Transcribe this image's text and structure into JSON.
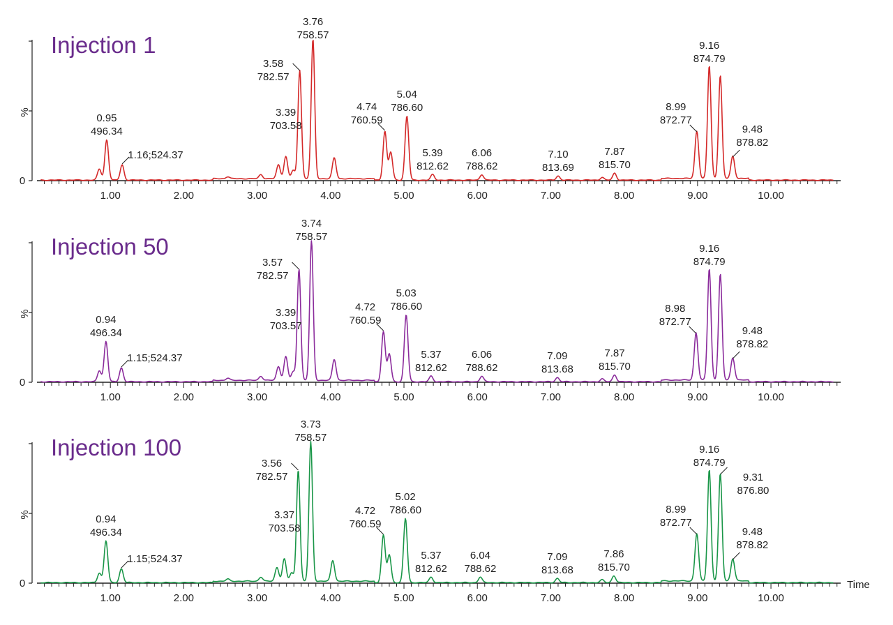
{
  "chart_data": [
    {
      "type": "line",
      "title": "Injection 1",
      "title_color": "#6a2c8c",
      "line_color": "#d42a2a",
      "xlabel": "",
      "ylabel": "%",
      "y_ticks": [
        "0",
        "%"
      ],
      "xlim": [
        0.0,
        10.95
      ],
      "x_ticks": [
        "1.00",
        "2.00",
        "3.00",
        "4.00",
        "5.00",
        "6.00",
        "7.00",
        "8.00",
        "9.00",
        "10.00"
      ],
      "peaks": [
        {
          "rt": 0.85,
          "h": 0.08
        },
        {
          "rt": 0.95,
          "h": 0.29,
          "label": [
            "0.95",
            "496.34"
          ]
        },
        {
          "rt": 1.16,
          "h": 0.11,
          "label": [
            "1.16;524.37"
          ]
        },
        {
          "rt": 2.6,
          "h": 0.015
        },
        {
          "rt": 3.05,
          "h": 0.03
        },
        {
          "rt": 3.29,
          "h": 0.1
        },
        {
          "rt": 3.39,
          "h": 0.16,
          "label": [
            "3.39",
            "703.58"
          ]
        },
        {
          "rt": 3.49,
          "h": 0.06
        },
        {
          "rt": 3.58,
          "h": 0.78,
          "label": [
            "3.58",
            "782.57"
          ]
        },
        {
          "rt": 3.76,
          "h": 1.0,
          "label": [
            "3.76",
            "758.57"
          ]
        },
        {
          "rt": 4.05,
          "h": 0.15
        },
        {
          "rt": 4.74,
          "h": 0.35,
          "label": [
            "4.74",
            "760.59"
          ]
        },
        {
          "rt": 4.82,
          "h": 0.2
        },
        {
          "rt": 5.04,
          "h": 0.46,
          "label": [
            "5.04",
            "786.60"
          ]
        },
        {
          "rt": 5.39,
          "h": 0.04,
          "label": [
            "5.39",
            "812.62"
          ]
        },
        {
          "rt": 6.06,
          "h": 0.04,
          "label": [
            "6.06",
            "788.62"
          ]
        },
        {
          "rt": 7.1,
          "h": 0.03,
          "label": [
            "7.10",
            "813.69"
          ]
        },
        {
          "rt": 7.7,
          "h": 0.02
        },
        {
          "rt": 7.87,
          "h": 0.05,
          "label": [
            "7.87",
            "815.70"
          ]
        },
        {
          "rt": 8.99,
          "h": 0.34,
          "label": [
            "8.99",
            "872.77"
          ]
        },
        {
          "rt": 9.16,
          "h": 0.81,
          "label": [
            "9.16",
            "874.79"
          ]
        },
        {
          "rt": 9.31,
          "h": 0.74
        },
        {
          "rt": 9.48,
          "h": 0.16,
          "label": [
            "9.48",
            "878.82"
          ]
        }
      ]
    },
    {
      "type": "line",
      "title": "Injection 50",
      "title_color": "#6a2c8c",
      "line_color": "#8b2c9c",
      "xlabel": "",
      "ylabel": "%",
      "y_ticks": [
        "0",
        "%"
      ],
      "xlim": [
        0.0,
        10.95
      ],
      "x_ticks": [
        "1.00",
        "2.00",
        "3.00",
        "4.00",
        "5.00",
        "6.00",
        "7.00",
        "8.00",
        "9.00",
        "10.00"
      ],
      "peaks": [
        {
          "rt": 0.85,
          "h": 0.08
        },
        {
          "rt": 0.94,
          "h": 0.29,
          "label": [
            "0.94",
            "496.34"
          ]
        },
        {
          "rt": 1.15,
          "h": 0.1,
          "label": [
            "1.15;524.37"
          ]
        },
        {
          "rt": 2.6,
          "h": 0.015
        },
        {
          "rt": 3.05,
          "h": 0.03
        },
        {
          "rt": 3.29,
          "h": 0.1
        },
        {
          "rt": 3.39,
          "h": 0.17,
          "label": [
            "3.39",
            "703.57"
          ]
        },
        {
          "rt": 3.49,
          "h": 0.06
        },
        {
          "rt": 3.57,
          "h": 0.8,
          "label": [
            "3.57",
            "782.57"
          ]
        },
        {
          "rt": 3.74,
          "h": 1.0,
          "label": [
            "3.74",
            "758.57"
          ]
        },
        {
          "rt": 4.05,
          "h": 0.15
        },
        {
          "rt": 4.72,
          "h": 0.36,
          "label": [
            "4.72",
            "760.59"
          ]
        },
        {
          "rt": 4.8,
          "h": 0.2
        },
        {
          "rt": 5.03,
          "h": 0.48,
          "label": [
            "5.03",
            "786.60"
          ]
        },
        {
          "rt": 5.37,
          "h": 0.04,
          "label": [
            "5.37",
            "812.62"
          ]
        },
        {
          "rt": 6.06,
          "h": 0.04,
          "label": [
            "6.06",
            "788.62"
          ]
        },
        {
          "rt": 7.09,
          "h": 0.03,
          "label": [
            "7.09",
            "813.68"
          ]
        },
        {
          "rt": 7.7,
          "h": 0.02
        },
        {
          "rt": 7.87,
          "h": 0.05,
          "label": [
            "7.87",
            "815.70"
          ]
        },
        {
          "rt": 8.98,
          "h": 0.34,
          "label": [
            "8.98",
            "872.77"
          ]
        },
        {
          "rt": 9.16,
          "h": 0.8,
          "label": [
            "9.16",
            "874.79"
          ]
        },
        {
          "rt": 9.31,
          "h": 0.76
        },
        {
          "rt": 9.48,
          "h": 0.16,
          "label": [
            "9.48",
            "878.82"
          ]
        }
      ]
    },
    {
      "type": "line",
      "title": "Injection 100",
      "title_color": "#6a2c8c",
      "line_color": "#1a9648",
      "xlabel": "Time",
      "ylabel": "%",
      "y_ticks": [
        "0",
        "%"
      ],
      "xlim": [
        0.0,
        10.95
      ],
      "x_ticks": [
        "1.00",
        "2.00",
        "3.00",
        "4.00",
        "5.00",
        "6.00",
        "7.00",
        "8.00",
        "9.00",
        "10.00"
      ],
      "peaks": [
        {
          "rt": 0.85,
          "h": 0.07
        },
        {
          "rt": 0.94,
          "h": 0.3,
          "label": [
            "0.94",
            "496.34"
          ]
        },
        {
          "rt": 1.15,
          "h": 0.1,
          "label": [
            "1.15;524.37"
          ]
        },
        {
          "rt": 2.6,
          "h": 0.015
        },
        {
          "rt": 3.05,
          "h": 0.03
        },
        {
          "rt": 3.27,
          "h": 0.1
        },
        {
          "rt": 3.37,
          "h": 0.16,
          "label": [
            "3.37",
            "703.58"
          ]
        },
        {
          "rt": 3.47,
          "h": 0.06
        },
        {
          "rt": 3.56,
          "h": 0.8,
          "label": [
            "3.56",
            "782.57"
          ]
        },
        {
          "rt": 3.73,
          "h": 1.0,
          "label": [
            "3.73",
            "758.57"
          ]
        },
        {
          "rt": 4.03,
          "h": 0.15
        },
        {
          "rt": 4.72,
          "h": 0.34,
          "label": [
            "4.72",
            "760.59"
          ]
        },
        {
          "rt": 4.8,
          "h": 0.2
        },
        {
          "rt": 5.02,
          "h": 0.46,
          "label": [
            "5.02",
            "786.60"
          ]
        },
        {
          "rt": 5.37,
          "h": 0.04,
          "label": [
            "5.37",
            "812.62"
          ]
        },
        {
          "rt": 6.04,
          "h": 0.04,
          "label": [
            "6.04",
            "788.62"
          ]
        },
        {
          "rt": 7.09,
          "h": 0.03,
          "label": [
            "7.09",
            "813.68"
          ]
        },
        {
          "rt": 7.7,
          "h": 0.02
        },
        {
          "rt": 7.86,
          "h": 0.05,
          "label": [
            "7.86",
            "815.70"
          ]
        },
        {
          "rt": 8.99,
          "h": 0.34,
          "label": [
            "8.99",
            "872.77"
          ]
        },
        {
          "rt": 9.16,
          "h": 0.8,
          "label": [
            "9.16",
            "874.79"
          ]
        },
        {
          "rt": 9.31,
          "h": 0.77,
          "label": [
            "9.31",
            "876.80"
          ]
        },
        {
          "rt": 9.48,
          "h": 0.16,
          "label": [
            "9.48",
            "878.82"
          ]
        }
      ]
    }
  ]
}
